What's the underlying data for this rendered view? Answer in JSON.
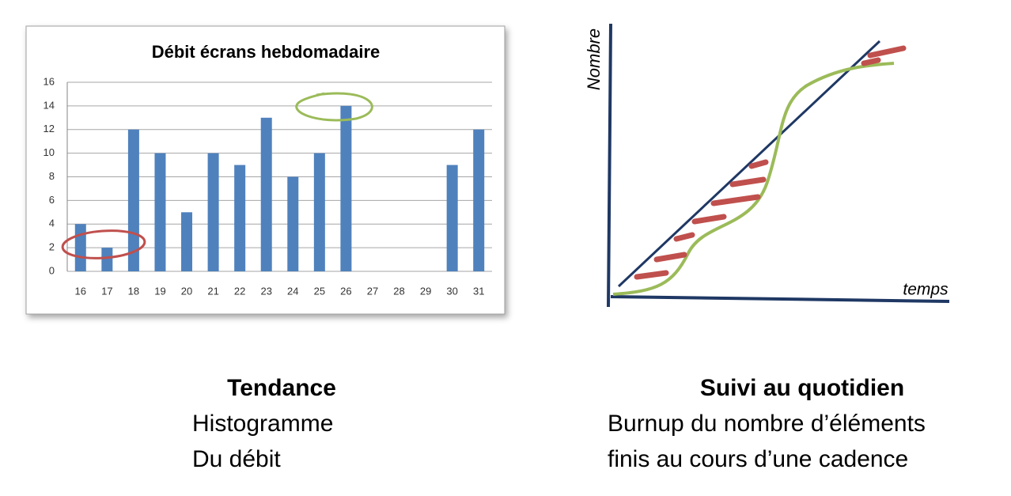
{
  "chart_data": {
    "type": "bar",
    "title": "Débit écrans hebdomadaire",
    "categories": [
      "16",
      "17",
      "18",
      "19",
      "20",
      "21",
      "22",
      "23",
      "24",
      "25",
      "26",
      "27",
      "28",
      "29",
      "30",
      "31"
    ],
    "values": [
      4,
      2,
      12,
      10,
      5,
      10,
      9,
      13,
      8,
      10,
      14,
      null,
      null,
      null,
      9,
      12
    ],
    "color": "#4f81bd",
    "ylim": [
      0,
      16
    ],
    "yticks": [
      0,
      2,
      4,
      6,
      8,
      10,
      12,
      14,
      16
    ],
    "grid": true
  },
  "diagram": {
    "y_label": "Nombre",
    "x_label": "temps"
  },
  "captions": {
    "left": {
      "title": "Tendance",
      "lines": [
        "Histogramme",
        "Du débit"
      ]
    },
    "right": {
      "title": "Suivi au quotidien",
      "lines": [
        "Burnup du nombre d’éléments",
        "finis au cours d’une cadence"
      ]
    }
  }
}
